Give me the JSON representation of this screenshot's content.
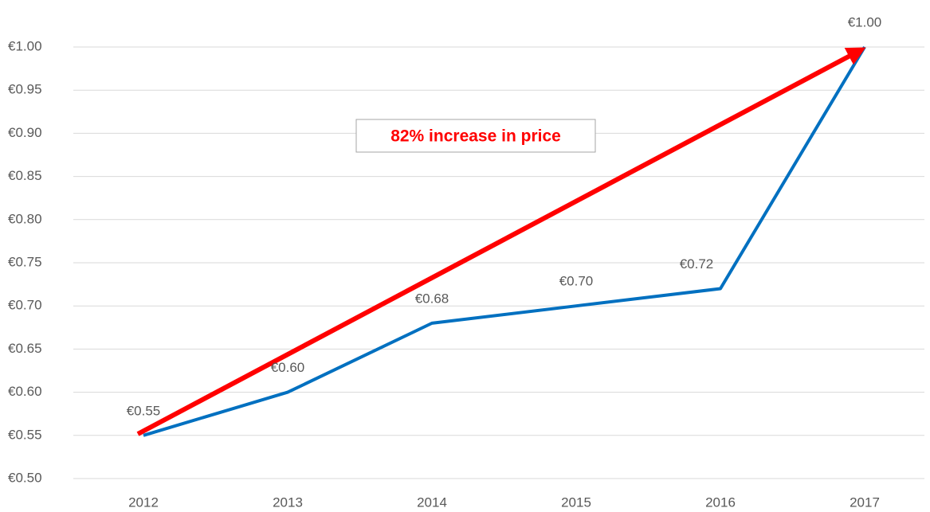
{
  "chart_data": {
    "type": "line",
    "annotation": "82% increase in price",
    "categories": [
      "2012",
      "2013",
      "2014",
      "2015",
      "2016",
      "2017"
    ],
    "series": [
      {
        "color": "#0070c0",
        "values": [
          0.55,
          0.6,
          0.68,
          0.7,
          0.72,
          1.0
        ],
        "value_labels": [
          "€0.55",
          "€0.60",
          "€0.68",
          "€0.70",
          "€0.72",
          "€1.00"
        ]
      }
    ],
    "ylim": [
      0.5,
      1.0
    ],
    "yticks": [
      {
        "value": 0.5,
        "label": "€0.50"
      },
      {
        "value": 0.55,
        "label": "€0.55"
      },
      {
        "value": 0.6,
        "label": "€0.60"
      },
      {
        "value": 0.65,
        "label": "€0.65"
      },
      {
        "value": 0.7,
        "label": "€0.70"
      },
      {
        "value": 0.75,
        "label": "€0.75"
      },
      {
        "value": 0.8,
        "label": "€0.80"
      },
      {
        "value": 0.85,
        "label": "€0.85"
      },
      {
        "value": 0.9,
        "label": "€0.90"
      },
      {
        "value": 0.95,
        "label": "€0.95"
      },
      {
        "value": 1.0,
        "label": "€1.00"
      }
    ],
    "grid": true
  }
}
